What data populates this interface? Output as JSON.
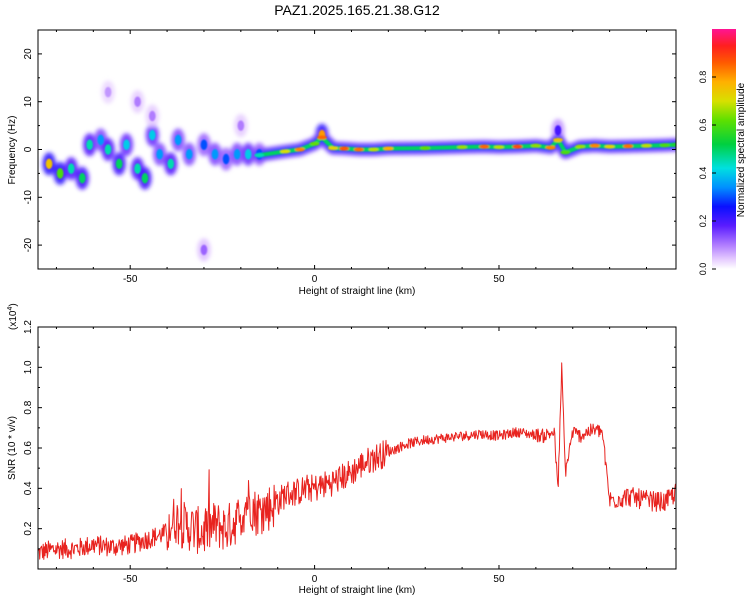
{
  "title": "PAZ1.2025.165.21.38.G12",
  "chart_data": [
    {
      "type": "heatmap",
      "xlabel": "Height of straight line (km)",
      "ylabel": "Frequency (Hz)",
      "xlim": [
        -75,
        98
      ],
      "ylim": [
        -25,
        25
      ],
      "xticks": [
        "-50",
        "0",
        "50"
      ],
      "yticks": [
        "-20",
        "-10",
        "0",
        "10",
        "20"
      ],
      "colorbar": {
        "label": "Normalized spectral amplitude",
        "range": [
          0,
          1
        ],
        "ticks": [
          "0.0",
          "0.2",
          "0.4",
          "0.6",
          "0.8"
        ]
      },
      "blobs": [
        {
          "x": -72,
          "y": -3,
          "a": 0.75
        },
        {
          "x": -69,
          "y": -5,
          "a": 0.6
        },
        {
          "x": -66,
          "y": -4,
          "a": 0.45
        },
        {
          "x": -63,
          "y": -6,
          "a": 0.5
        },
        {
          "x": -61,
          "y": 1,
          "a": 0.45
        },
        {
          "x": -58,
          "y": 2,
          "a": 0.35
        },
        {
          "x": -56,
          "y": 0,
          "a": 0.45
        },
        {
          "x": -53,
          "y": -3,
          "a": 0.5
        },
        {
          "x": -51,
          "y": 1,
          "a": 0.4
        },
        {
          "x": -48,
          "y": -4,
          "a": 0.45
        },
        {
          "x": -46,
          "y": -6,
          "a": 0.5
        },
        {
          "x": -44,
          "y": 3,
          "a": 0.4
        },
        {
          "x": -42,
          "y": -1,
          "a": 0.35
        },
        {
          "x": -39,
          "y": -3,
          "a": 0.45
        },
        {
          "x": -37,
          "y": 2,
          "a": 0.35
        },
        {
          "x": -34,
          "y": -1,
          "a": 0.35
        },
        {
          "x": -30,
          "y": 1,
          "a": 0.3
        },
        {
          "x": -27,
          "y": -1,
          "a": 0.35
        },
        {
          "x": -24,
          "y": -2,
          "a": 0.3
        },
        {
          "x": -21,
          "y": -1,
          "a": 0.35
        },
        {
          "x": -18,
          "y": -1,
          "a": 0.4
        },
        {
          "x": -15,
          "y": -1,
          "a": 0.3
        },
        {
          "x": -48,
          "y": 10,
          "a": 0.1
        },
        {
          "x": -56,
          "y": 12,
          "a": 0.08
        },
        {
          "x": -44,
          "y": 7,
          "a": 0.1
        },
        {
          "x": -30,
          "y": -21,
          "a": 0.12
        },
        {
          "x": -20,
          "y": 5,
          "a": 0.1
        },
        {
          "x": 2,
          "y": 3,
          "a": 0.8
        },
        {
          "x": 66,
          "y": 4,
          "a": 0.2
        }
      ],
      "ridge": [
        {
          "x": -15,
          "y": -1.2,
          "a": 0.45
        },
        {
          "x": -8,
          "y": -0.4,
          "a": 0.7
        },
        {
          "x": -4,
          "y": 0,
          "a": 0.82
        },
        {
          "x": 0,
          "y": 1.2,
          "a": 0.62
        },
        {
          "x": 2,
          "y": 2.5,
          "a": 0.85
        },
        {
          "x": 5,
          "y": 0.3,
          "a": 0.72
        },
        {
          "x": 8,
          "y": 0.2,
          "a": 0.86
        },
        {
          "x": 12,
          "y": 0,
          "a": 0.84
        },
        {
          "x": 16,
          "y": 0,
          "a": 0.68
        },
        {
          "x": 20,
          "y": 0.2,
          "a": 0.78
        },
        {
          "x": 30,
          "y": 0.3,
          "a": 0.62
        },
        {
          "x": 40,
          "y": 0.5,
          "a": 0.66
        },
        {
          "x": 46,
          "y": 0.6,
          "a": 0.85
        },
        {
          "x": 50,
          "y": 0.5,
          "a": 0.68
        },
        {
          "x": 55,
          "y": 0.6,
          "a": 0.88
        },
        {
          "x": 60,
          "y": 0.8,
          "a": 0.65
        },
        {
          "x": 64,
          "y": 0.4,
          "a": 0.82
        },
        {
          "x": 66,
          "y": 2,
          "a": 0.75
        },
        {
          "x": 68,
          "y": -0.6,
          "a": 0.6
        },
        {
          "x": 72,
          "y": 0.6,
          "a": 0.66
        },
        {
          "x": 76,
          "y": 0.8,
          "a": 0.82
        },
        {
          "x": 80,
          "y": 0.6,
          "a": 0.72
        },
        {
          "x": 85,
          "y": 0.7,
          "a": 0.84
        },
        {
          "x": 90,
          "y": 0.8,
          "a": 0.68
        },
        {
          "x": 95,
          "y": 0.9,
          "a": 0.6
        },
        {
          "x": 98,
          "y": 1,
          "a": 0.55
        }
      ]
    },
    {
      "type": "line",
      "xlabel": "Height of straight line (km)",
      "ylabel": "SNR (10 * v/v)",
      "yscale_label": "(x10",
      "yscale_exp": "4",
      "yscale_close": ")",
      "xlim": [
        -75,
        98
      ],
      "ylim": [
        0,
        1.2
      ],
      "xticks": [
        "-50",
        "0",
        "50"
      ],
      "yticks": [
        "0.2",
        "0.4",
        "0.6",
        "0.8",
        "1.0",
        "1.2"
      ],
      "color": "#e8231f",
      "series": [
        {
          "x": [
            -75,
            -70,
            -65,
            -60,
            -55,
            -50,
            -45,
            -40,
            -38,
            -36,
            -33,
            -30,
            -27,
            -24,
            -20,
            -18,
            -16,
            -13,
            -10,
            -8,
            -5,
            -2,
            0,
            3,
            6,
            10,
            13,
            16,
            20,
            25,
            30,
            35,
            40,
            45,
            50,
            55,
            58,
            62,
            65,
            66,
            67,
            68,
            70,
            72,
            74,
            76,
            78,
            80,
            85,
            90,
            95,
            98
          ],
          "values": [
            0.08,
            0.1,
            0.1,
            0.12,
            0.11,
            0.12,
            0.15,
            0.18,
            0.25,
            0.22,
            0.2,
            0.18,
            0.22,
            0.2,
            0.26,
            0.35,
            0.28,
            0.3,
            0.33,
            0.37,
            0.38,
            0.4,
            0.4,
            0.42,
            0.44,
            0.48,
            0.52,
            0.55,
            0.58,
            0.62,
            0.64,
            0.65,
            0.66,
            0.67,
            0.66,
            0.68,
            0.67,
            0.66,
            0.68,
            0.38,
            1.0,
            0.48,
            0.68,
            0.66,
            0.68,
            0.69,
            0.68,
            0.34,
            0.36,
            0.34,
            0.33,
            0.38
          ]
        }
      ]
    }
  ]
}
